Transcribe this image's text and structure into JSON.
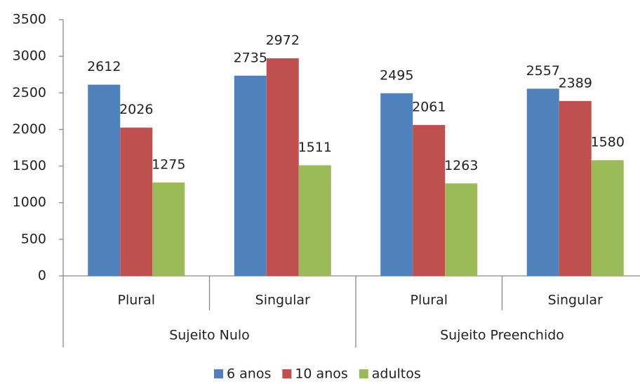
{
  "chart_data": {
    "type": "bar",
    "groups": [
      {
        "name": "Sujeito Nulo",
        "categories": [
          "Plural",
          "Singular"
        ]
      },
      {
        "name": "Sujeito Preenchido",
        "categories": [
          "Plural",
          "Singular"
        ]
      }
    ],
    "series": [
      {
        "name": "6 anos",
        "color": "#4f81bd",
        "values": [
          2612,
          2735,
          2495,
          2557
        ]
      },
      {
        "name": "10 anos",
        "color": "#c0504d",
        "values": [
          2026,
          2972,
          2061,
          2389
        ]
      },
      {
        "name": "adultos",
        "color": "#9bbb59",
        "values": [
          1275,
          1511,
          1263,
          1580
        ]
      }
    ],
    "ylim": [
      0,
      3500
    ],
    "yticks": [
      0,
      500,
      1000,
      1500,
      2000,
      2500,
      3000,
      3500
    ],
    "grid": false,
    "legend": "bottom"
  }
}
